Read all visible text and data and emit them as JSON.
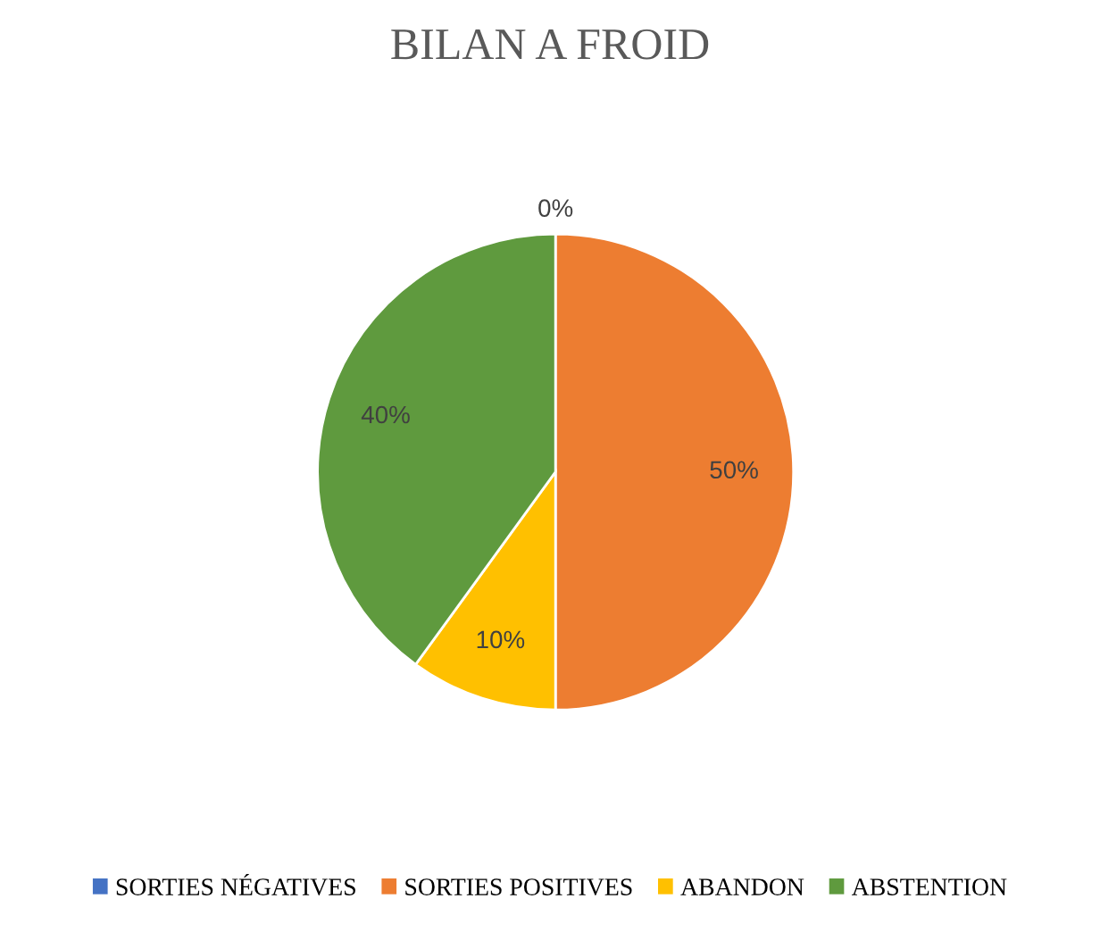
{
  "chart_data": {
    "type": "pie",
    "title": "BILAN A FROID",
    "categories": [
      "SORTIES NÉGATIVES",
      "SORTIES POSITIVES",
      "ABANDON",
      "ABSTENTION"
    ],
    "values": [
      0,
      50,
      10,
      40
    ],
    "value_labels": [
      "0%",
      "50%",
      "10%",
      "40%"
    ],
    "colors": [
      "#4472c4",
      "#ed7d31",
      "#ffc000",
      "#5f9a3e"
    ],
    "legend": "bottom"
  }
}
